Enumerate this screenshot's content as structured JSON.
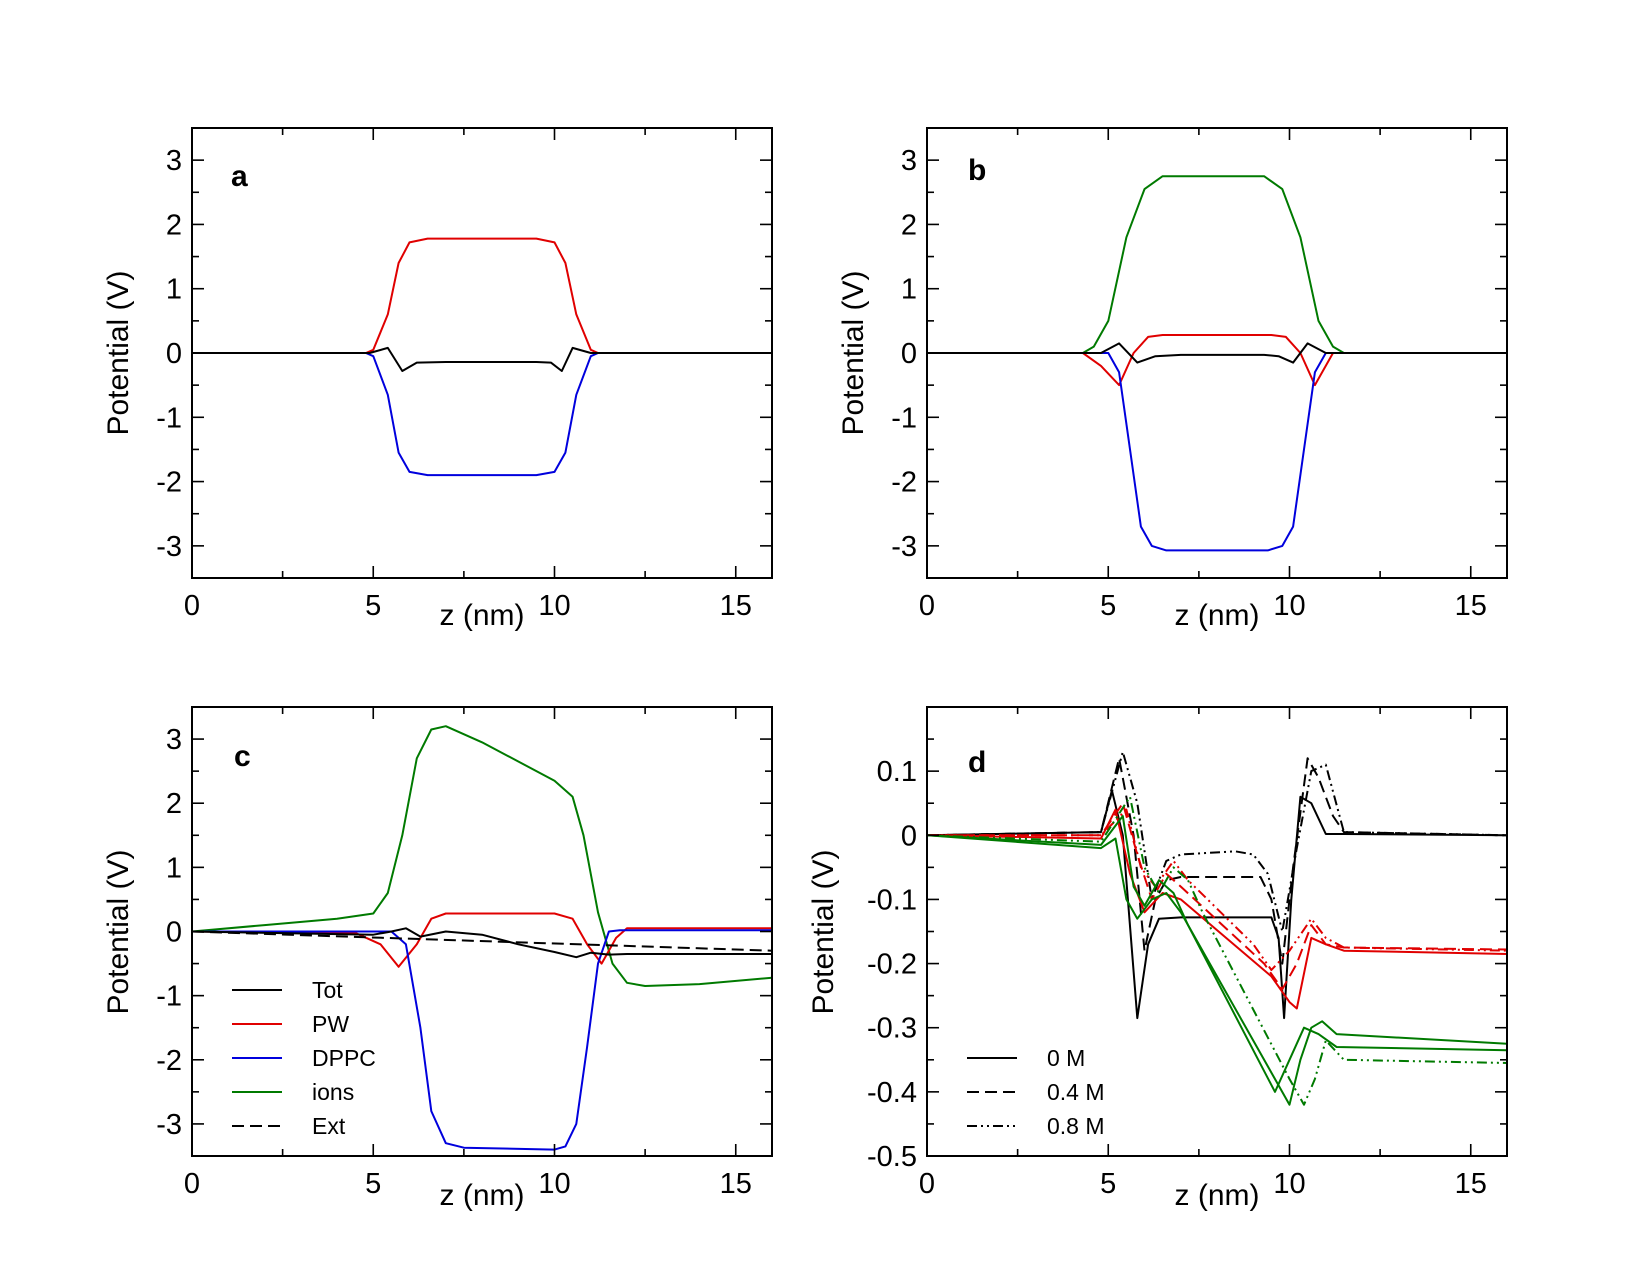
{
  "colors": {
    "Tot": "#000000",
    "PW": "#e00000",
    "DPPC": "#0000dd",
    "ions": "#007a00",
    "Ext": "#000000"
  },
  "chart_data": [
    {
      "id": "a",
      "type": "line",
      "label": "a",
      "xlabel": "z (nm)",
      "ylabel": "Potential (V)",
      "xlim": [
        0,
        16
      ],
      "ylim": [
        -3.5,
        3.5
      ],
      "xticks": [
        0,
        5,
        10,
        15
      ],
      "xtick_labels": [
        "0",
        "5",
        "10",
        "15"
      ],
      "yticks": [
        -3,
        -2,
        -1,
        0,
        1,
        2,
        3
      ],
      "ytick_labels": [
        "-3",
        "-2",
        "-1",
        "0",
        "1",
        "2",
        "3"
      ],
      "series": [
        {
          "name": "PW",
          "color": "PW",
          "style": "solid",
          "x": [
            0,
            4.8,
            5.0,
            5.4,
            5.7,
            6.0,
            6.5,
            9.5,
            10.0,
            10.3,
            10.6,
            11.0,
            11.2,
            16
          ],
          "y": [
            0,
            0,
            0.05,
            0.6,
            1.4,
            1.72,
            1.78,
            1.78,
            1.72,
            1.4,
            0.6,
            0.05,
            0,
            0
          ]
        },
        {
          "name": "DPPC",
          "color": "DPPC",
          "style": "solid",
          "x": [
            0,
            4.8,
            5.0,
            5.4,
            5.7,
            6.0,
            6.5,
            9.5,
            10.0,
            10.3,
            10.6,
            11.0,
            11.2,
            16
          ],
          "y": [
            0,
            0,
            -0.05,
            -0.65,
            -1.55,
            -1.85,
            -1.9,
            -1.9,
            -1.85,
            -1.55,
            -0.65,
            -0.05,
            0,
            0
          ]
        },
        {
          "name": "Tot",
          "color": "Tot",
          "style": "solid",
          "x": [
            0,
            4.9,
            5.4,
            5.8,
            6.2,
            7.0,
            9.5,
            9.9,
            10.2,
            10.5,
            11.0,
            16
          ],
          "y": [
            0,
            0,
            0.08,
            -0.28,
            -0.15,
            -0.14,
            -0.14,
            -0.15,
            -0.28,
            0.08,
            0,
            0
          ]
        }
      ]
    },
    {
      "id": "b",
      "type": "line",
      "label": "b",
      "xlabel": "z (nm)",
      "ylabel": "Potential (V)",
      "xlim": [
        0,
        16
      ],
      "ylim": [
        -3.5,
        3.5
      ],
      "xticks": [
        0,
        5,
        10,
        15
      ],
      "xtick_labels": [
        "0",
        "5",
        "10",
        "15"
      ],
      "yticks": [
        -3,
        -2,
        -1,
        0,
        1,
        2,
        3
      ],
      "ytick_labels": [
        "-3",
        "-2",
        "-1",
        "0",
        "1",
        "2",
        "3"
      ],
      "series": [
        {
          "name": "ions",
          "color": "ions",
          "style": "solid",
          "x": [
            0,
            4.3,
            4.6,
            5.0,
            5.5,
            6.0,
            6.5,
            9.3,
            9.8,
            10.3,
            10.8,
            11.2,
            11.5,
            16
          ],
          "y": [
            0,
            0,
            0.1,
            0.5,
            1.8,
            2.55,
            2.75,
            2.75,
            2.55,
            1.8,
            0.5,
            0.1,
            0,
            0
          ]
        },
        {
          "name": "PW",
          "color": "PW",
          "style": "solid",
          "x": [
            0,
            4.3,
            4.8,
            5.3,
            5.7,
            6.1,
            6.5,
            9.5,
            9.9,
            10.3,
            10.7,
            11.2,
            16
          ],
          "y": [
            0,
            0,
            -0.2,
            -0.5,
            0,
            0.25,
            0.28,
            0.28,
            0.25,
            0,
            -0.5,
            0,
            0
          ]
        },
        {
          "name": "DPPC",
          "color": "DPPC",
          "style": "solid",
          "x": [
            0,
            5.0,
            5.3,
            5.6,
            5.9,
            6.2,
            6.6,
            9.4,
            9.8,
            10.1,
            10.4,
            10.7,
            11.0,
            16
          ],
          "y": [
            0,
            0,
            -0.3,
            -1.5,
            -2.7,
            -3.0,
            -3.07,
            -3.07,
            -3.0,
            -2.7,
            -1.5,
            -0.3,
            0,
            0
          ]
        },
        {
          "name": "Tot",
          "color": "Tot",
          "style": "solid",
          "x": [
            0,
            4.8,
            5.3,
            5.8,
            6.3,
            7.0,
            9.3,
            9.7,
            10.1,
            10.5,
            11.0,
            16
          ],
          "y": [
            0,
            0,
            0.15,
            -0.15,
            -0.05,
            -0.03,
            -0.03,
            -0.05,
            -0.15,
            0.15,
            0,
            0
          ]
        }
      ]
    },
    {
      "id": "c",
      "type": "line",
      "label": "c",
      "xlabel": "z (nm)",
      "ylabel": "Potential (V)",
      "xlim": [
        0,
        16
      ],
      "ylim": [
        -3.5,
        3.5
      ],
      "xticks": [
        0,
        5,
        10,
        15
      ],
      "xtick_labels": [
        "0",
        "5",
        "10",
        "15"
      ],
      "yticks": [
        -3,
        -2,
        -1,
        0,
        1,
        2,
        3
      ],
      "ytick_labels": [
        "-3",
        "-2",
        "-1",
        "0",
        "1",
        "2",
        "3"
      ],
      "legend": {
        "position": "bottom-left",
        "entries": [
          {
            "label": "Tot",
            "color": "Tot",
            "style": "solid"
          },
          {
            "label": "PW",
            "color": "PW",
            "style": "solid"
          },
          {
            "label": "DPPC",
            "color": "DPPC",
            "style": "solid"
          },
          {
            "label": "ions",
            "color": "ions",
            "style": "solid"
          },
          {
            "label": "Ext",
            "color": "Ext",
            "style": "dashed"
          }
        ]
      },
      "series": [
        {
          "name": "ions",
          "color": "ions",
          "style": "solid",
          "x": [
            0,
            2,
            4,
            5.0,
            5.4,
            5.8,
            6.2,
            6.6,
            7.0,
            8.0,
            9.0,
            10.0,
            10.5,
            10.8,
            11.2,
            11.6,
            12.0,
            12.5,
            14,
            16
          ],
          "y": [
            0,
            0.1,
            0.2,
            0.28,
            0.6,
            1.5,
            2.7,
            3.15,
            3.2,
            2.95,
            2.65,
            2.35,
            2.1,
            1.5,
            0.3,
            -0.5,
            -0.8,
            -0.85,
            -0.82,
            -0.72
          ]
        },
        {
          "name": "PW",
          "color": "PW",
          "style": "solid",
          "x": [
            0,
            4.5,
            5.2,
            5.7,
            6.2,
            6.6,
            7.0,
            10.0,
            10.5,
            10.9,
            11.3,
            11.7,
            12.0,
            16
          ],
          "y": [
            0,
            -0.02,
            -0.2,
            -0.55,
            -0.2,
            0.2,
            0.28,
            0.28,
            0.2,
            -0.2,
            -0.5,
            -0.1,
            0.05,
            0.05
          ]
        },
        {
          "name": "DPPC",
          "color": "DPPC",
          "style": "solid",
          "x": [
            0,
            5.5,
            5.9,
            6.3,
            6.6,
            7.0,
            7.5,
            10.0,
            10.3,
            10.6,
            10.9,
            11.2,
            11.5,
            11.8,
            16
          ],
          "y": [
            0,
            0,
            -0.2,
            -1.5,
            -2.8,
            -3.3,
            -3.37,
            -3.4,
            -3.35,
            -3.0,
            -1.8,
            -0.5,
            0,
            0.02,
            0.02
          ]
        },
        {
          "name": "Tot",
          "color": "Tot",
          "style": "solid",
          "x": [
            0,
            5.0,
            5.5,
            5.9,
            6.3,
            7.0,
            8.0,
            9.0,
            10.0,
            10.6,
            11.0,
            11.5,
            12.0,
            16
          ],
          "y": [
            0,
            -0.05,
            0,
            0.05,
            -0.08,
            0,
            -0.05,
            -0.2,
            -0.32,
            -0.4,
            -0.33,
            -0.36,
            -0.35,
            -0.35
          ]
        },
        {
          "name": "Ext",
          "color": "Ext",
          "style": "dashed",
          "x": [
            0,
            16
          ],
          "y": [
            0,
            -0.3
          ]
        }
      ]
    },
    {
      "id": "d",
      "type": "line",
      "label": "d",
      "xlabel": "z (nm)",
      "ylabel": "Potential (V)",
      "xlim": [
        0,
        16
      ],
      "ylim": [
        -0.5,
        0.2
      ],
      "xticks": [
        0,
        5,
        10,
        15
      ],
      "xtick_labels": [
        "0",
        "5",
        "10",
        "15"
      ],
      "yticks": [
        -0.5,
        -0.4,
        -0.3,
        -0.2,
        -0.1,
        0,
        0.1
      ],
      "ytick_labels": [
        "-0.5",
        "-0.4",
        "-0.3",
        "-0.2",
        "-0.1",
        "0",
        "0.1"
      ],
      "legend": {
        "position": "bottom-left",
        "entries": [
          {
            "label": "0 M",
            "color": "Tot",
            "style": "solid"
          },
          {
            "label": "0.4 M",
            "color": "Tot",
            "style": "dashed"
          },
          {
            "label": "0.8 M",
            "color": "Tot",
            "style": "dashdot"
          }
        ]
      },
      "series": [
        {
          "name": "Tot 0 M",
          "color": "Tot",
          "style": "solid",
          "x": [
            0,
            4.8,
            5.1,
            5.4,
            5.8,
            6.1,
            6.4,
            7.0,
            9.5,
            9.7,
            9.85,
            10.05,
            10.3,
            10.6,
            11.0,
            11.5,
            16
          ],
          "y": [
            0,
            0.005,
            0.07,
            0,
            -0.285,
            -0.17,
            -0.13,
            -0.128,
            -0.128,
            -0.16,
            -0.285,
            -0.1,
            0.06,
            0.05,
            0.002,
            0.002,
            0
          ]
        },
        {
          "name": "Tot 0.4 M",
          "color": "Tot",
          "style": "dashed",
          "x": [
            0,
            4.8,
            5.3,
            5.7,
            6.0,
            6.3,
            6.6,
            7.0,
            9.2,
            9.5,
            9.8,
            10.1,
            10.5,
            10.8,
            11.2,
            11.5,
            16
          ],
          "y": [
            0,
            0.005,
            0.12,
            0,
            -0.18,
            -0.1,
            -0.07,
            -0.065,
            -0.065,
            -0.1,
            -0.2,
            -0.05,
            0.12,
            0.09,
            0.03,
            0.005,
            0
          ]
        },
        {
          "name": "Tot 0.8 M",
          "color": "Tot",
          "style": "dashdot",
          "x": [
            0,
            4.8,
            5.4,
            5.8,
            6.2,
            6.6,
            7.0,
            8.5,
            9.0,
            9.4,
            9.8,
            10.2,
            10.6,
            11.0,
            11.5,
            16
          ],
          "y": [
            0,
            0.005,
            0.13,
            0.05,
            -0.1,
            -0.04,
            -0.03,
            -0.025,
            -0.03,
            -0.06,
            -0.15,
            -0.02,
            0.1,
            0.11,
            0.005,
            0
          ]
        },
        {
          "name": "PW 0 M",
          "color": "PW",
          "style": "solid",
          "x": [
            0,
            4.8,
            5.2,
            5.6,
            6.0,
            6.5,
            7.0,
            9.5,
            10.0,
            10.2,
            10.6,
            11.0,
            11.5,
            16
          ],
          "y": [
            0,
            -0.005,
            0.04,
            -0.06,
            -0.12,
            -0.09,
            -0.1,
            -0.22,
            -0.26,
            -0.27,
            -0.16,
            -0.17,
            -0.18,
            -0.185
          ]
        },
        {
          "name": "PW 0.4 M",
          "color": "PW",
          "style": "dashed",
          "x": [
            0,
            4.8,
            5.4,
            5.8,
            6.2,
            6.6,
            7.0,
            9.3,
            9.8,
            10.2,
            10.6,
            11.0,
            11.5,
            16
          ],
          "y": [
            0,
            0,
            0.05,
            -0.03,
            -0.1,
            -0.06,
            -0.08,
            -0.2,
            -0.24,
            -0.2,
            -0.14,
            -0.17,
            -0.175,
            -0.178
          ]
        },
        {
          "name": "PW 0.8 M",
          "color": "PW",
          "style": "dashdot",
          "x": [
            0,
            4.8,
            5.5,
            5.9,
            6.3,
            6.8,
            7.2,
            9.0,
            9.5,
            10.0,
            10.6,
            11.0,
            11.5,
            16
          ],
          "y": [
            0,
            0,
            0.04,
            -0.05,
            -0.08,
            -0.04,
            -0.07,
            -0.17,
            -0.21,
            -0.18,
            -0.13,
            -0.16,
            -0.175,
            -0.18
          ]
        },
        {
          "name": "ions 0 M",
          "color": "ions",
          "style": "solid",
          "x": [
            0,
            4.8,
            5.2,
            5.5,
            5.8,
            6.2,
            6.6,
            7.0,
            10.0,
            10.3,
            10.6,
            10.9,
            11.3,
            16
          ],
          "y": [
            0,
            -0.02,
            -0.005,
            -0.1,
            -0.13,
            -0.1,
            -0.09,
            -0.12,
            -0.42,
            -0.35,
            -0.3,
            -0.29,
            -0.31,
            -0.325
          ]
        },
        {
          "name": "ions 0.4 M",
          "color": "ions",
          "style": "solid",
          "x": [
            0,
            4.8,
            5.4,
            5.7,
            6.0,
            6.4,
            6.8,
            7.2,
            9.6,
            10.0,
            10.4,
            10.8,
            11.3,
            16
          ],
          "y": [
            0,
            -0.015,
            0.03,
            -0.08,
            -0.11,
            -0.07,
            -0.09,
            -0.14,
            -0.4,
            -0.35,
            -0.3,
            -0.31,
            -0.33,
            -0.335
          ]
        },
        {
          "name": "ions 0.8 M",
          "color": "ions",
          "style": "dashdot",
          "x": [
            0,
            4.8,
            5.6,
            6.0,
            6.4,
            6.8,
            7.2,
            7.6,
            10.0,
            10.4,
            10.7,
            11.0,
            11.5,
            16
          ],
          "y": [
            0,
            -0.01,
            0.06,
            -0.05,
            -0.09,
            -0.05,
            -0.07,
            -0.12,
            -0.38,
            -0.42,
            -0.38,
            -0.32,
            -0.35,
            -0.355
          ]
        }
      ]
    }
  ]
}
